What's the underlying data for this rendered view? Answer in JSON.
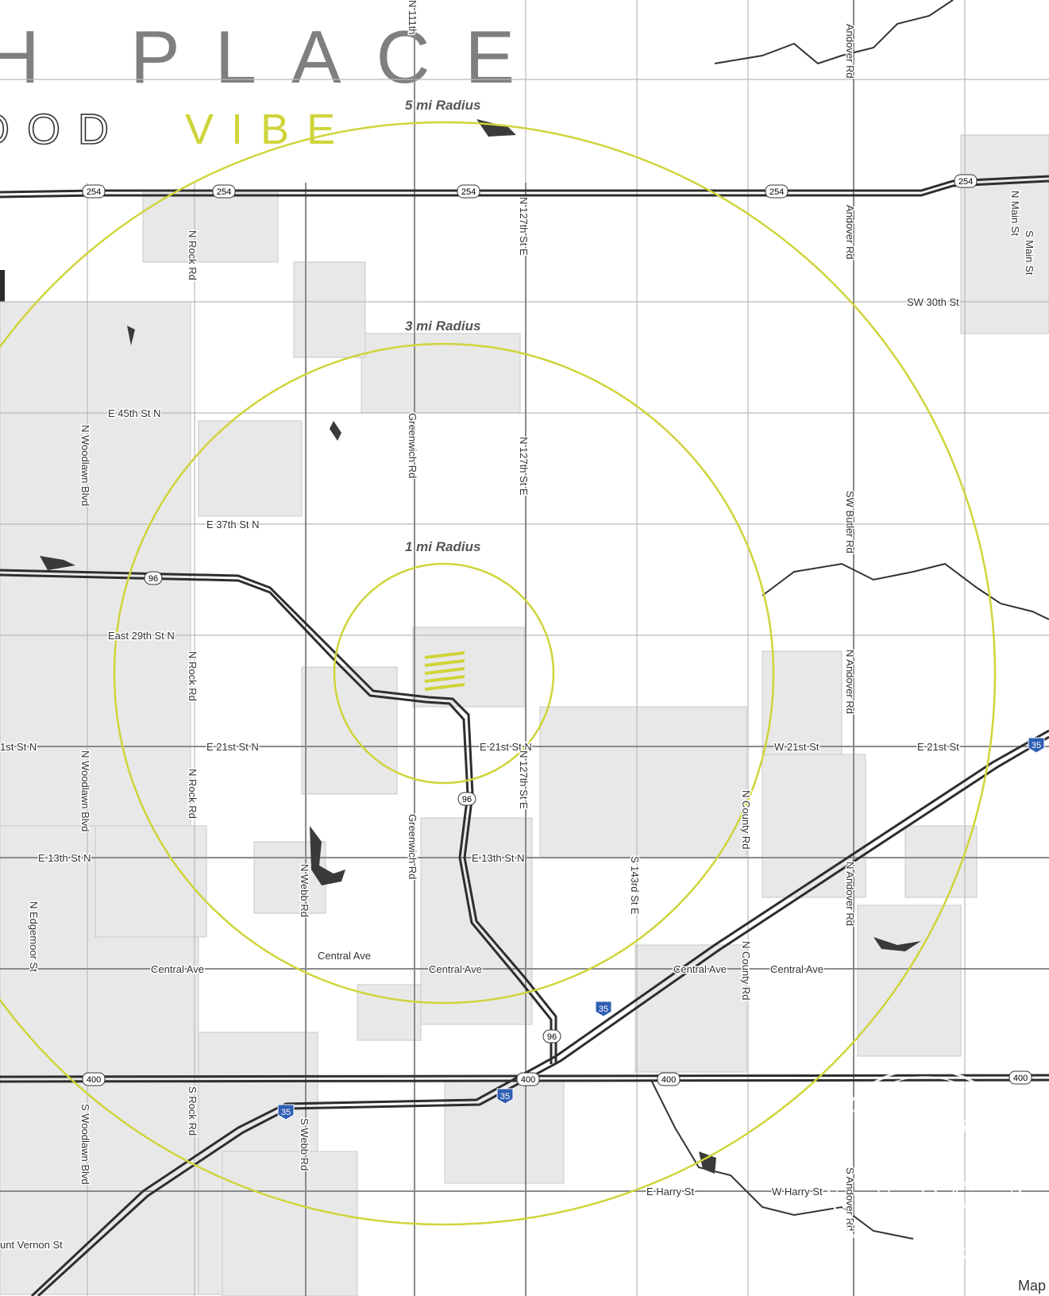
{
  "header": {
    "line1": "H PLACE",
    "line2_outline": "OOD",
    "line2_accent": "VIBE"
  },
  "colors": {
    "ring": "#cfd43a",
    "block": "#e6e6e6",
    "road": "#a9a9a9",
    "highway": "#2e2e2e",
    "water": "#3a3a3a",
    "marker": "#cfd43a"
  },
  "rings": [
    {
      "label": "1 mi Radius"
    },
    {
      "label": "3 mi Radius"
    },
    {
      "label": "5 mi Radius"
    }
  ],
  "shields": {
    "us254": "254",
    "ks96": "96",
    "us400": "400",
    "i35": "35"
  },
  "streets": {
    "n_rock_rd": "N Rock Rd",
    "n_woodlawn": "N Woodlawn Blvd",
    "greenwich": "Greenwich Rd",
    "n127": "N 127th St E",
    "andover": "Andover Rd",
    "sw_butler": "SW Butler Rd",
    "n_andover": "N Andover Rd",
    "s_andover": "S Andover Rd",
    "sw30": "SW 30th St",
    "e45": "E 45th St N",
    "e37": "E 37th St N",
    "e29": "East 29th St N",
    "e21": "E 21st St N",
    "e21_west": "1st St N",
    "w21": "W 21st St",
    "e21st": "E 21st St",
    "e13": "E 13th St N",
    "central": "Central Ave",
    "n_webb": "N Webb Rd",
    "s_webb": "S Webb Rd",
    "s_rock": "S Rock Rd",
    "s_woodlawn": "S Woodlawn Blvd",
    "n_edgemoor": "N Edgemoor St",
    "s143": "S 143rd St E",
    "n_county": "N County Rd",
    "e_harry": "E Harry St",
    "w_harry": "W Harry St",
    "mt_vernon": "unt Vernon St",
    "n_main": "N Main St",
    "s_main": "S Main St",
    "top_road": "N 111th"
  },
  "logo": {
    "letters": "KWC"
  },
  "attribution": "Map"
}
